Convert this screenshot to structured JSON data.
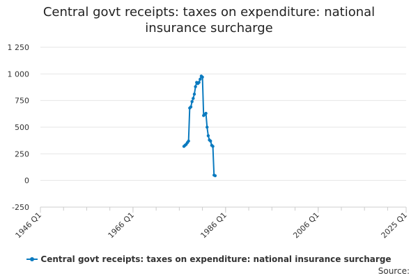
{
  "chart_data": {
    "type": "line",
    "title": "Central govt receipts: taxes on expenditure: national insurance surcharge",
    "xlabel": "",
    "ylabel": "",
    "ylim": [
      -250,
      1250
    ],
    "y_ticks": [
      -250,
      0,
      250,
      500,
      750,
      1000,
      1250
    ],
    "y_tick_labels": [
      "-250",
      "0",
      "250",
      "500",
      "750",
      "1 000",
      "1 250"
    ],
    "x_range": [
      1946.0,
      2025.0
    ],
    "x_ticks": [
      1946.0,
      1966.0,
      1986.0,
      2006.0,
      2025.0
    ],
    "x_tick_labels": [
      "1946 Q1",
      "1966 Q1",
      "1986 Q1",
      "2006 Q1",
      "2025 Q1"
    ],
    "grid": "horizontal",
    "legend_position": "bottom",
    "series": [
      {
        "name": "Central govt receipts: taxes on expenditure: national insurance surcharge",
        "color": "#0a7abf",
        "points": [
          [
            1977.0,
            320
          ],
          [
            1977.25,
            330
          ],
          [
            1977.5,
            340
          ],
          [
            1977.75,
            355
          ],
          [
            1978.0,
            370
          ],
          [
            1978.25,
            680
          ],
          [
            1978.5,
            690
          ],
          [
            1978.75,
            740
          ],
          [
            1979.0,
            770
          ],
          [
            1979.25,
            810
          ],
          [
            1979.5,
            880
          ],
          [
            1979.75,
            920
          ],
          [
            1980.0,
            910
          ],
          [
            1980.25,
            920
          ],
          [
            1980.5,
            950
          ],
          [
            1980.75,
            980
          ],
          [
            1981.0,
            970
          ],
          [
            1981.25,
            610
          ],
          [
            1981.5,
            620
          ],
          [
            1981.75,
            630
          ],
          [
            1982.0,
            500
          ],
          [
            1982.25,
            420
          ],
          [
            1982.5,
            380
          ],
          [
            1982.75,
            370
          ],
          [
            1983.0,
            330
          ],
          [
            1983.25,
            320
          ],
          [
            1983.5,
            50
          ],
          [
            1983.75,
            45
          ]
        ]
      }
    ]
  },
  "legend": {
    "label": "Central govt receipts: taxes on expenditure: national insurance surcharge"
  },
  "source": {
    "label": "Source:"
  }
}
